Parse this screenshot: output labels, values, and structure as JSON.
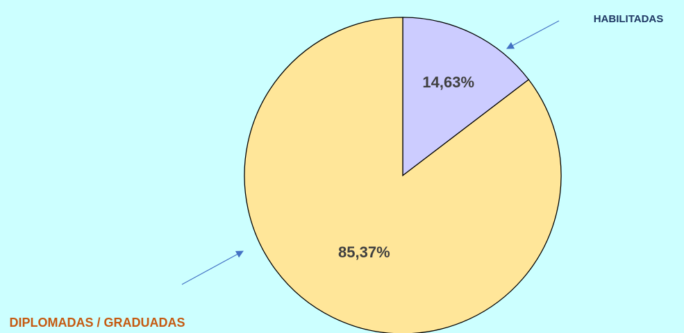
{
  "chart_data": {
    "type": "pie",
    "categories": [
      "HABILITADAS",
      "DIPLOMADAS / GRADUADAS"
    ],
    "values": [
      14.63,
      85.37
    ],
    "value_labels": [
      "14,63%",
      "85,37%"
    ],
    "colors": [
      "#ccccff",
      "#ffe699"
    ],
    "label_colors": [
      "#1f3864",
      "#c55a11"
    ]
  }
}
